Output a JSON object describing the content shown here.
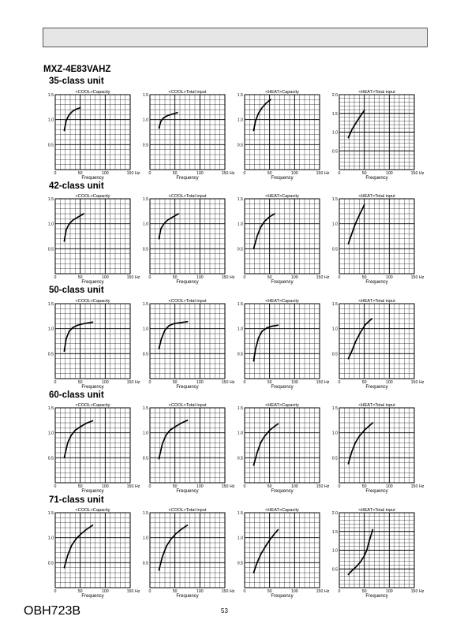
{
  "page": {
    "model": "MXZ-4E83VAHZ",
    "page_number": "53",
    "doc_code": "OBH723B"
  },
  "rows": [
    {
      "title": "35-class unit"
    },
    {
      "title": "42-class unit"
    },
    {
      "title": "50-class unit"
    },
    {
      "title": "60-class unit"
    },
    {
      "title": "71-class unit"
    }
  ],
  "chart_data": [
    {
      "type": "line",
      "title": "<COOL>Capacity",
      "xlabel": "Frequency",
      "x_unit": "Hz",
      "xlim": [
        0,
        150
      ],
      "ylim": [
        0,
        1.5
      ],
      "xticks": [
        0,
        50,
        100,
        150
      ],
      "yticks": [
        0.5,
        1.0,
        1.5
      ],
      "series": [
        {
          "x": [
            18,
            22,
            28,
            35,
            42,
            50
          ],
          "y": [
            0.78,
            0.98,
            1.1,
            1.17,
            1.21,
            1.24
          ]
        }
      ]
    },
    {
      "type": "line",
      "title": "<COOL>Total input",
      "xlabel": "Frequency",
      "x_unit": "Hz",
      "xlim": [
        0,
        150
      ],
      "ylim": [
        0,
        1.5
      ],
      "xticks": [
        0,
        50,
        100,
        150
      ],
      "yticks": [
        0.5,
        1.0,
        1.5
      ],
      "series": [
        {
          "x": [
            18,
            22,
            28,
            35,
            45,
            55
          ],
          "y": [
            0.83,
            0.97,
            1.04,
            1.08,
            1.11,
            1.14
          ]
        }
      ]
    },
    {
      "type": "line",
      "title": "<HEAT>Capacity",
      "xlabel": "Frequency",
      "x_unit": "Hz",
      "xlim": [
        0,
        150
      ],
      "ylim": [
        0,
        1.5
      ],
      "xticks": [
        0,
        50,
        100,
        150
      ],
      "yticks": [
        0.5,
        1.0,
        1.5
      ],
      "series": [
        {
          "x": [
            18,
            22,
            28,
            35,
            42,
            52
          ],
          "y": [
            0.78,
            0.98,
            1.13,
            1.24,
            1.32,
            1.4
          ]
        }
      ]
    },
    {
      "type": "line",
      "title": "<HEAT>Total input",
      "xlabel": "Frequency",
      "x_unit": "Hz",
      "xlim": [
        0,
        150
      ],
      "ylim": [
        0,
        2.0
      ],
      "xticks": [
        0,
        50,
        100,
        150
      ],
      "yticks": [
        0.5,
        1.0,
        1.5,
        2.0
      ],
      "series": [
        {
          "x": [
            18,
            25,
            32,
            40,
            50
          ],
          "y": [
            0.85,
            1.06,
            1.22,
            1.38,
            1.58
          ]
        }
      ]
    },
    {
      "type": "line",
      "title": "<COOL>Capacity",
      "xlabel": "Frequency",
      "x_unit": "Hz",
      "xlim": [
        0,
        150
      ],
      "ylim": [
        0,
        1.5
      ],
      "xticks": [
        0,
        50,
        100,
        150
      ],
      "yticks": [
        0.5,
        1.0,
        1.5
      ],
      "series": [
        {
          "x": [
            18,
            22,
            28,
            35,
            45,
            57
          ],
          "y": [
            0.65,
            0.88,
            1.0,
            1.07,
            1.13,
            1.2
          ]
        }
      ]
    },
    {
      "type": "line",
      "title": "<COOL>Total input",
      "xlabel": "Frequency",
      "x_unit": "Hz",
      "xlim": [
        0,
        150
      ],
      "ylim": [
        0,
        1.5
      ],
      "xticks": [
        0,
        50,
        100,
        150
      ],
      "yticks": [
        0.5,
        1.0,
        1.5
      ],
      "series": [
        {
          "x": [
            18,
            22,
            28,
            35,
            45,
            57
          ],
          "y": [
            0.7,
            0.9,
            1.0,
            1.07,
            1.13,
            1.2
          ]
        }
      ]
    },
    {
      "type": "line",
      "title": "<HEAT>Capacity",
      "xlabel": "Frequency",
      "x_unit": "Hz",
      "xlim": [
        0,
        150
      ],
      "ylim": [
        0,
        1.5
      ],
      "xticks": [
        0,
        50,
        100,
        150
      ],
      "yticks": [
        0.5,
        1.0,
        1.5
      ],
      "series": [
        {
          "x": [
            18,
            25,
            32,
            40,
            50,
            60
          ],
          "y": [
            0.5,
            0.75,
            0.93,
            1.05,
            1.14,
            1.2
          ]
        }
      ]
    },
    {
      "type": "line",
      "title": "<HEAT>Total input",
      "xlabel": "Frequency",
      "x_unit": "Hz",
      "xlim": [
        0,
        150
      ],
      "ylim": [
        0,
        1.5
      ],
      "xticks": [
        0,
        50,
        100,
        150
      ],
      "yticks": [
        0.5,
        1.0,
        1.5
      ],
      "series": [
        {
          "x": [
            18,
            25,
            32,
            40,
            50
          ],
          "y": [
            0.6,
            0.8,
            1.0,
            1.17,
            1.38
          ]
        }
      ]
    },
    {
      "type": "line",
      "title": "<COOL>Capacity",
      "xlabel": "Frequency",
      "x_unit": "Hz",
      "xlim": [
        0,
        150
      ],
      "ylim": [
        0,
        1.5
      ],
      "xticks": [
        0,
        50,
        100,
        150
      ],
      "yticks": [
        0.5,
        1.0,
        1.5
      ],
      "series": [
        {
          "x": [
            18,
            22,
            28,
            35,
            45,
            57,
            75
          ],
          "y": [
            0.55,
            0.8,
            0.95,
            1.02,
            1.07,
            1.1,
            1.13
          ]
        }
      ]
    },
    {
      "type": "line",
      "title": "<COOL>Total input",
      "xlabel": "Frequency",
      "x_unit": "Hz",
      "xlim": [
        0,
        150
      ],
      "ylim": [
        0,
        1.5
      ],
      "xticks": [
        0,
        50,
        100,
        150
      ],
      "yticks": [
        0.5,
        1.0,
        1.5
      ],
      "series": [
        {
          "x": [
            18,
            23,
            30,
            38,
            48,
            60,
            75
          ],
          "y": [
            0.6,
            0.8,
            0.97,
            1.06,
            1.1,
            1.12,
            1.14
          ]
        }
      ]
    },
    {
      "type": "line",
      "title": "<HEAT>Capacity",
      "xlabel": "Frequency",
      "x_unit": "Hz",
      "xlim": [
        0,
        150
      ],
      "ylim": [
        0,
        1.5
      ],
      "xticks": [
        0,
        50,
        100,
        150
      ],
      "yticks": [
        0.5,
        1.0,
        1.5
      ],
      "series": [
        {
          "x": [
            18,
            22,
            28,
            35,
            45,
            55,
            67
          ],
          "y": [
            0.35,
            0.6,
            0.82,
            0.95,
            1.02,
            1.05,
            1.07
          ]
        }
      ]
    },
    {
      "type": "line",
      "title": "<HEAT>Total input",
      "xlabel": "Frequency",
      "x_unit": "Hz",
      "xlim": [
        0,
        150
      ],
      "ylim": [
        0,
        1.5
      ],
      "xticks": [
        0,
        50,
        100,
        150
      ],
      "yticks": [
        0.5,
        1.0,
        1.5
      ],
      "series": [
        {
          "x": [
            18,
            25,
            33,
            42,
            52,
            65
          ],
          "y": [
            0.4,
            0.55,
            0.75,
            0.92,
            1.08,
            1.2
          ]
        }
      ]
    },
    {
      "type": "line",
      "title": "<COOL>Capacity",
      "xlabel": "Frequency",
      "x_unit": "Hz",
      "xlim": [
        0,
        150
      ],
      "ylim": [
        0,
        1.5
      ],
      "xticks": [
        0,
        50,
        100,
        150
      ],
      "yticks": [
        0.5,
        1.0,
        1.5
      ],
      "series": [
        {
          "x": [
            18,
            25,
            32,
            40,
            50,
            62,
            75
          ],
          "y": [
            0.5,
            0.8,
            0.95,
            1.05,
            1.12,
            1.19,
            1.24
          ]
        }
      ]
    },
    {
      "type": "line",
      "title": "<COOL>Total input",
      "xlabel": "Frequency",
      "x_unit": "Hz",
      "xlim": [
        0,
        150
      ],
      "ylim": [
        0,
        1.5
      ],
      "xticks": [
        0,
        50,
        100,
        150
      ],
      "yticks": [
        0.5,
        1.0,
        1.5
      ],
      "series": [
        {
          "x": [
            18,
            25,
            32,
            40,
            50,
            62,
            75
          ],
          "y": [
            0.48,
            0.78,
            0.95,
            1.05,
            1.12,
            1.19,
            1.25
          ]
        }
      ]
    },
    {
      "type": "line",
      "title": "<HEAT>Capacity",
      "xlabel": "Frequency",
      "x_unit": "Hz",
      "xlim": [
        0,
        150
      ],
      "ylim": [
        0,
        1.5
      ],
      "xticks": [
        0,
        50,
        100,
        150
      ],
      "yticks": [
        0.5,
        1.0,
        1.5
      ],
      "series": [
        {
          "x": [
            18,
            25,
            32,
            40,
            50,
            60,
            67
          ],
          "y": [
            0.35,
            0.6,
            0.8,
            0.93,
            1.05,
            1.13,
            1.18
          ]
        }
      ]
    },
    {
      "type": "line",
      "title": "<HEAT>Total input",
      "xlabel": "Frequency",
      "x_unit": "Hz",
      "xlim": [
        0,
        150
      ],
      "ylim": [
        0,
        1.5
      ],
      "xticks": [
        0,
        50,
        100,
        150
      ],
      "yticks": [
        0.5,
        1.0,
        1.5
      ],
      "series": [
        {
          "x": [
            18,
            25,
            32,
            40,
            50,
            60,
            67
          ],
          "y": [
            0.38,
            0.62,
            0.8,
            0.93,
            1.05,
            1.14,
            1.2
          ]
        }
      ]
    },
    {
      "type": "line",
      "title": "<COOL>Capacity",
      "xlabel": "Frequency",
      "x_unit": "Hz",
      "xlim": [
        0,
        150
      ],
      "ylim": [
        0,
        1.5
      ],
      "xticks": [
        0,
        50,
        100,
        150
      ],
      "yticks": [
        0.5,
        1.0,
        1.5
      ],
      "series": [
        {
          "x": [
            18,
            25,
            33,
            42,
            52,
            63,
            75
          ],
          "y": [
            0.4,
            0.65,
            0.85,
            0.98,
            1.08,
            1.17,
            1.25
          ]
        }
      ]
    },
    {
      "type": "line",
      "title": "<COOL>Total input",
      "xlabel": "Frequency",
      "x_unit": "Hz",
      "xlim": [
        0,
        150
      ],
      "ylim": [
        0,
        1.5
      ],
      "xticks": [
        0,
        50,
        100,
        150
      ],
      "yticks": [
        0.5,
        1.0,
        1.5
      ],
      "series": [
        {
          "x": [
            18,
            25,
            33,
            42,
            52,
            63,
            75
          ],
          "y": [
            0.35,
            0.62,
            0.83,
            0.97,
            1.08,
            1.17,
            1.25
          ]
        }
      ]
    },
    {
      "type": "line",
      "title": "<HEAT>Capacity",
      "xlabel": "Frequency",
      "x_unit": "Hz",
      "xlim": [
        0,
        150
      ],
      "ylim": [
        0,
        1.5
      ],
      "xticks": [
        0,
        50,
        100,
        150
      ],
      "yticks": [
        0.5,
        1.0,
        1.5
      ],
      "series": [
        {
          "x": [
            18,
            25,
            33,
            42,
            52,
            60,
            67
          ],
          "y": [
            0.3,
            0.5,
            0.68,
            0.83,
            0.98,
            1.08,
            1.16
          ]
        }
      ]
    },
    {
      "type": "line",
      "title": "<HEAT>Total input",
      "xlabel": "Frequency",
      "x_unit": "Hz",
      "xlim": [
        0,
        150
      ],
      "ylim": [
        0,
        2.0
      ],
      "xticks": [
        0,
        50,
        100,
        150
      ],
      "yticks": [
        0.5,
        1.0,
        1.5,
        2.0
      ],
      "series": [
        {
          "x": [
            18,
            25,
            33,
            42,
            50,
            55,
            60,
            67
          ],
          "y": [
            0.35,
            0.45,
            0.55,
            0.68,
            0.85,
            1.0,
            1.25,
            1.55
          ]
        }
      ]
    }
  ]
}
